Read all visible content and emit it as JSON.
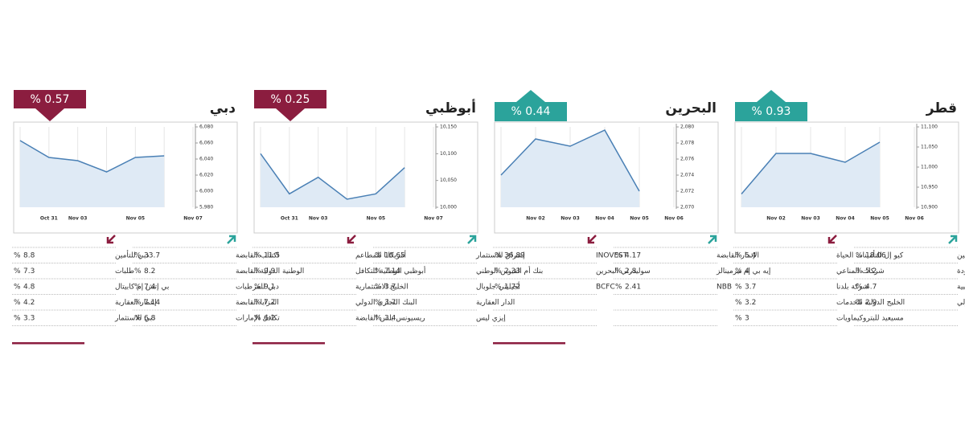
{
  "pct_sign": "%",
  "panels": [
    {
      "title": "دبي",
      "change": "% 0.57",
      "direction": "down",
      "gainers": [
        {
          "name": "اكتتاب القابضة",
          "value": "33.7"
        },
        {
          "name": "الوطنية الدولية القابضة",
          "value": "8.2"
        },
        {
          "name": "دبي للمرطبات",
          "value": "7.4"
        },
        {
          "name": "المزايا القابضة",
          "value": "7.14"
        },
        {
          "name": "تكافل الإمارات",
          "value": "6.8"
        }
      ],
      "losers": [
        {
          "name": "دبي للتأمين",
          "value": "8.8"
        },
        {
          "name": "طلبات",
          "value": "7.3"
        },
        {
          "name": "بي إتش إم كابيتال",
          "value": "4.8"
        },
        {
          "name": "إعمار العقارية",
          "value": "4.2"
        },
        {
          "name": "دبي للاستثمار",
          "value": "3.3"
        }
      ]
    },
    {
      "title": "أبوظبي",
      "change": "% 0.25",
      "direction": "down",
      "gainers": [
        {
          "name": "إشراق للاستثمار",
          "value": "10.65"
        },
        {
          "name": "بنك أم القيوين الوطني",
          "value": "7.14"
        },
        {
          "name": "أجيليتي جلوبال",
          "value": "3.7"
        },
        {
          "name": "الدار العقارية",
          "value": "3.7"
        },
        {
          "name": "إيزي ليس",
          "value": "3.4"
        }
      ],
      "losers": [
        {
          "name": "أمريكانا للمطاعم",
          "value": "11.5"
        },
        {
          "name": "أبوظبي الوطنية للتكافل",
          "value": "9.9"
        },
        {
          "name": "الخليج الاستثمارية",
          "value": "9.1"
        },
        {
          "name": "البنك التجاري الدولي",
          "value": "7.7"
        },
        {
          "name": "ريسيونس بلس القابضة",
          "value": "6.2"
        }
      ]
    },
    {
      "title": "البحرين",
      "change": "% 0.44",
      "direction": "up",
      "gainers": [
        {
          "name": "الإثمار القابضة",
          "value": "4.17"
        },
        {
          "name": "إيه بي إم تيرمينالز",
          "value": "2.8"
        },
        {
          "name": "NBB",
          "value": "2.41"
        }
      ],
      "losers": [
        {
          "name": "INOVEST",
          "value": "36.89"
        },
        {
          "name": "سوليدرتي البحرين",
          "value": "2.33"
        },
        {
          "name": "BCFC",
          "value": "1.72"
        }
      ]
    },
    {
      "title": "قطر",
      "change": "% 0.93",
      "direction": "up",
      "gainers": [
        {
          "name": "القطرية العامة للتأمين",
          "value": "18.06"
        },
        {
          "name": "قطر لنقل الغاز المحدودة",
          "value": "5.2"
        },
        {
          "name": "القطرية الألمانية للمستلزمات الطبية",
          "value": "4.7"
        },
        {
          "name": "بنك قطر الدولي",
          "value": "2.9"
        }
      ],
      "losers": [
        {
          "name": "كيو إل للتأمينات الحياة",
          "value": "5.4"
        },
        {
          "name": "شركات المناعي",
          "value": "4"
        },
        {
          "name": "شركة بلدنا",
          "value": "3.7"
        },
        {
          "name": "الخليج الدولية للخدمات",
          "value": "3.2"
        },
        {
          "name": "مسيعيد للبتروكيماويات",
          "value": "3"
        }
      ]
    }
  ],
  "chart_data": [
    {
      "type": "line",
      "color": "#4a80b5",
      "grid": true,
      "categories": [
        null,
        "Oct 31",
        "Nov 03",
        null,
        "Nov 05",
        null,
        "Nov 07"
      ],
      "values": [
        6063,
        6042,
        6038,
        6024,
        6042,
        6044,
        null
      ],
      "ylim": [
        5980,
        6080
      ],
      "yticks": [
        {
          "value": 5980,
          "label": "5,980"
        },
        {
          "value": 6000,
          "label": "6,000"
        },
        {
          "value": 6020,
          "label": "6,020"
        },
        {
          "value": 6040,
          "label": "6,040"
        },
        {
          "value": 6060,
          "label": "6,060"
        },
        {
          "value": 6080,
          "label": "6,080"
        }
      ]
    },
    {
      "type": "line",
      "color": "#4a80b5",
      "grid": true,
      "categories": [
        null,
        "Oct 31",
        "Nov 03",
        null,
        "Nov 05",
        null,
        "Nov 07"
      ],
      "values": [
        10100,
        10025,
        10056,
        10015,
        10025,
        10074,
        null
      ],
      "ylim": [
        10000,
        10150
      ],
      "yticks": [
        {
          "value": 10000,
          "label": "10,000"
        },
        {
          "value": 10050,
          "label": "10,050"
        },
        {
          "value": 10100,
          "label": "10,100"
        },
        {
          "value": 10150,
          "label": "10,150"
        }
      ]
    },
    {
      "type": "line",
      "color": "#4a80b5",
      "grid": true,
      "categories": [
        null,
        "Nov 02",
        "Nov 03",
        "Nov 04",
        "Nov 05",
        "Nov 06"
      ],
      "values": [
        2074.0,
        2078.5,
        2077.6,
        2079.6,
        2072.0,
        null
      ],
      "ylim": [
        2070,
        2080
      ],
      "yticks": [
        {
          "value": 2070,
          "label": "2,070"
        },
        {
          "value": 2072,
          "label": "2,072"
        },
        {
          "value": 2074,
          "label": "2,074"
        },
        {
          "value": 2076,
          "label": "2,076"
        },
        {
          "value": 2078,
          "label": "2,078"
        },
        {
          "value": 2080,
          "label": "2,080"
        }
      ]
    },
    {
      "type": "line",
      "color": "#4a80b5",
      "grid": true,
      "categories": [
        null,
        "Nov 02",
        "Nov 03",
        "Nov 04",
        "Nov 05",
        "Nov 06"
      ],
      "values": [
        10933,
        11034,
        11034,
        11012,
        11062,
        null
      ],
      "ylim": [
        10900,
        11100
      ],
      "yticks": [
        {
          "value": 10900,
          "label": "10,900"
        },
        {
          "value": 10950,
          "label": "10,950"
        },
        {
          "value": 11000,
          "label": "11,000"
        },
        {
          "value": 11050,
          "label": "11,050"
        },
        {
          "value": 11100,
          "label": "11,100"
        }
      ]
    }
  ]
}
